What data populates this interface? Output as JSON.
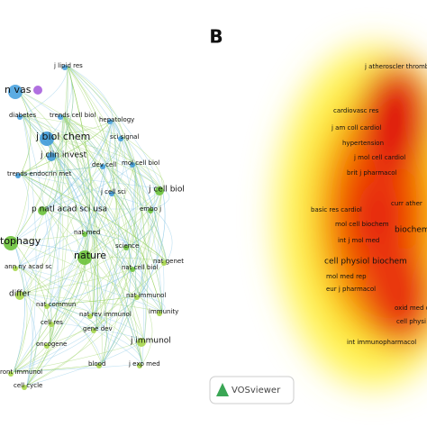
{
  "panel_label": "B",
  "network": {
    "labels": [
      "j lipid res",
      "n vas",
      "diabetes",
      "trends cell biol",
      "hepatology",
      "j biol chem",
      "sci signal",
      "j clin invest",
      "trends endocrin met",
      "mol cell biol",
      "dev cell",
      "j cell sci",
      "j cell biol",
      "p natl acad sci usa",
      "embo j",
      "nat med",
      "tophagy",
      "science",
      "nature",
      "nat cell biol",
      "ann ny acad sc",
      "nat genet",
      "differ",
      "nat immunol",
      "nat commun",
      "immunity",
      "nat rev immunol",
      "gene dev",
      "cell res",
      "j immunol",
      "oncogene",
      "blood",
      "j exp med",
      "ront immunol",
      "cell cycle"
    ]
  },
  "density": {
    "labels": [
      "j atheroscler thromb",
      "cardiovasc res",
      "j am coll cardiol",
      "hypertension",
      "j mol cell cardiol",
      "brit j pharmacol",
      "curr ather",
      "basic res cardiol",
      "mol cell biochem",
      "biochem",
      "int j mol med",
      "cell physiol biochem",
      "mol med rep",
      "eur j pharmacol",
      "oxid med cell lon",
      "cell physi",
      "int immunopharmacol"
    ]
  },
  "logo": "VOSviewer"
}
